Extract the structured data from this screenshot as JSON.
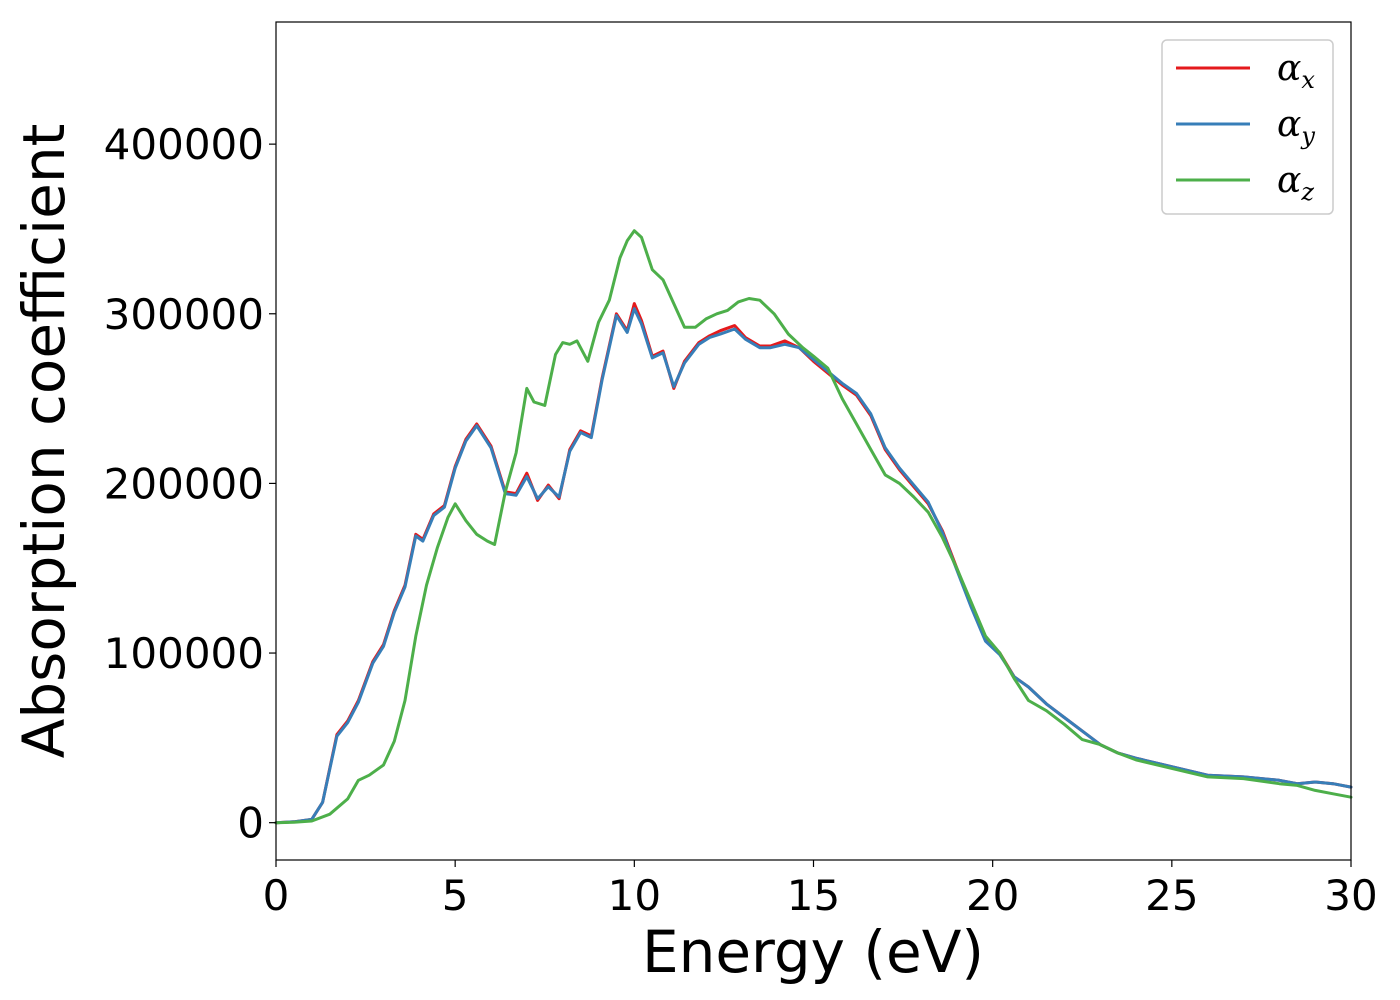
{
  "chart_data": {
    "type": "line",
    "title": "",
    "xlabel": "Energy (eV)",
    "ylabel": "Absorption coefficient",
    "xlim": [
      0,
      30
    ],
    "ylim": [
      -22000,
      472000
    ],
    "xticks": [
      0,
      5,
      10,
      15,
      20,
      25,
      30
    ],
    "yticks": [
      0,
      100000,
      200000,
      300000,
      400000
    ],
    "grid": false,
    "legend_position": "top-right",
    "series": [
      {
        "name": "α",
        "subscript": "x",
        "color": "#e41a1c",
        "x": [
          0,
          0.5,
          1.0,
          1.3,
          1.7,
          2.0,
          2.3,
          2.7,
          3.0,
          3.3,
          3.6,
          3.9,
          4.1,
          4.4,
          4.7,
          5.0,
          5.3,
          5.6,
          6.0,
          6.4,
          6.7,
          7.0,
          7.3,
          7.6,
          7.9,
          8.2,
          8.5,
          8.8,
          9.1,
          9.5,
          9.8,
          10.0,
          10.2,
          10.5,
          10.8,
          11.1,
          11.4,
          11.8,
          12.1,
          12.4,
          12.8,
          13.1,
          13.5,
          13.8,
          14.2,
          14.6,
          15.0,
          15.4,
          15.8,
          16.2,
          16.6,
          17.0,
          17.4,
          17.8,
          18.2,
          18.6,
          19.0,
          19.4,
          19.8,
          20.2,
          20.6,
          21.0,
          21.5,
          22.0,
          22.5,
          23.0,
          23.5,
          24.0,
          25.0,
          26.0,
          27.0,
          28.0,
          28.5,
          29.0,
          29.5,
          30.0
        ],
        "y": [
          0,
          500,
          2000,
          12000,
          52000,
          60000,
          72000,
          95000,
          105000,
          125000,
          140000,
          170000,
          167000,
          182000,
          187000,
          210000,
          226000,
          235000,
          222000,
          195000,
          194000,
          206000,
          190000,
          199000,
          191000,
          220000,
          231000,
          228000,
          262000,
          300000,
          290000,
          306000,
          296000,
          275000,
          278000,
          256000,
          272000,
          283000,
          287000,
          290000,
          293000,
          286000,
          281000,
          281000,
          284000,
          280000,
          272000,
          265000,
          258000,
          252000,
          240000,
          220000,
          208000,
          198000,
          188000,
          172000,
          150000,
          128000,
          108000,
          100000,
          86000,
          80000,
          70000,
          62000,
          54000,
          46000,
          41000,
          38000,
          33000,
          28000,
          27000,
          25000,
          23000,
          24000,
          23000,
          21000
        ]
      },
      {
        "name": "α",
        "subscript": "y",
        "color": "#377eb8",
        "x": [
          0,
          0.5,
          1.0,
          1.3,
          1.7,
          2.0,
          2.3,
          2.7,
          3.0,
          3.3,
          3.6,
          3.9,
          4.1,
          4.4,
          4.7,
          5.0,
          5.3,
          5.6,
          6.0,
          6.4,
          6.7,
          7.0,
          7.3,
          7.6,
          7.9,
          8.2,
          8.5,
          8.8,
          9.1,
          9.5,
          9.8,
          10.0,
          10.2,
          10.5,
          10.8,
          11.1,
          11.4,
          11.8,
          12.1,
          12.4,
          12.8,
          13.1,
          13.5,
          13.8,
          14.2,
          14.6,
          15.0,
          15.4,
          15.8,
          16.2,
          16.6,
          17.0,
          17.4,
          17.8,
          18.2,
          18.6,
          19.0,
          19.4,
          19.8,
          20.2,
          20.6,
          21.0,
          21.5,
          22.0,
          22.5,
          23.0,
          23.5,
          24.0,
          25.0,
          26.0,
          27.0,
          28.0,
          28.5,
          29.0,
          29.5,
          30.0
        ],
        "y": [
          0,
          500,
          2000,
          12000,
          51000,
          59000,
          71000,
          94000,
          104000,
          124000,
          139000,
          169000,
          166000,
          181000,
          186000,
          209000,
          225000,
          234000,
          221000,
          194000,
          193000,
          204000,
          191000,
          198000,
          192000,
          219000,
          230000,
          227000,
          261000,
          299000,
          289000,
          303000,
          294000,
          274000,
          277000,
          257000,
          271000,
          282000,
          286000,
          288000,
          291000,
          285000,
          280000,
          280000,
          282000,
          280000,
          273000,
          266000,
          259000,
          253000,
          241000,
          221000,
          209000,
          199000,
          189000,
          171000,
          149000,
          127000,
          107000,
          99000,
          86000,
          80000,
          70000,
          62000,
          54000,
          46000,
          41000,
          38000,
          33000,
          28000,
          27000,
          25000,
          23000,
          24000,
          23000,
          21000
        ]
      },
      {
        "name": "α",
        "subscript": "z",
        "color": "#4daf4a",
        "x": [
          0,
          0.5,
          1.0,
          1.5,
          2.0,
          2.3,
          2.6,
          3.0,
          3.3,
          3.6,
          3.9,
          4.2,
          4.5,
          4.8,
          5.0,
          5.3,
          5.6,
          5.9,
          6.1,
          6.4,
          6.7,
          7.0,
          7.2,
          7.5,
          7.8,
          8.0,
          8.2,
          8.4,
          8.7,
          9.0,
          9.3,
          9.6,
          9.8,
          10.0,
          10.2,
          10.5,
          10.8,
          11.1,
          11.4,
          11.7,
          12.0,
          12.3,
          12.6,
          12.9,
          13.2,
          13.5,
          13.9,
          14.3,
          14.7,
          15.0,
          15.4,
          15.8,
          16.2,
          16.6,
          17.0,
          17.4,
          17.8,
          18.2,
          18.6,
          19.0,
          19.4,
          19.8,
          20.2,
          20.6,
          21.0,
          21.5,
          22.0,
          22.5,
          23.0,
          23.5,
          24.0,
          25.0,
          26.0,
          27.0,
          28.0,
          28.5,
          29.0,
          29.5,
          30.0
        ],
        "y": [
          0,
          300,
          1000,
          5000,
          14000,
          25000,
          28000,
          34000,
          48000,
          72000,
          110000,
          140000,
          162000,
          180000,
          188000,
          178000,
          170000,
          166000,
          164000,
          195000,
          218000,
          256000,
          248000,
          246000,
          276000,
          283000,
          282000,
          284000,
          272000,
          295000,
          308000,
          333000,
          343000,
          349000,
          345000,
          326000,
          320000,
          306000,
          292000,
          292000,
          297000,
          300000,
          302000,
          307000,
          309000,
          308000,
          300000,
          288000,
          280000,
          275000,
          268000,
          250000,
          235000,
          220000,
          205000,
          200000,
          192000,
          183000,
          168000,
          150000,
          130000,
          110000,
          100000,
          85000,
          72000,
          66000,
          58000,
          49000,
          46000,
          41000,
          37000,
          32000,
          27000,
          26000,
          23000,
          22000,
          19000,
          17000,
          15000
        ]
      }
    ]
  }
}
